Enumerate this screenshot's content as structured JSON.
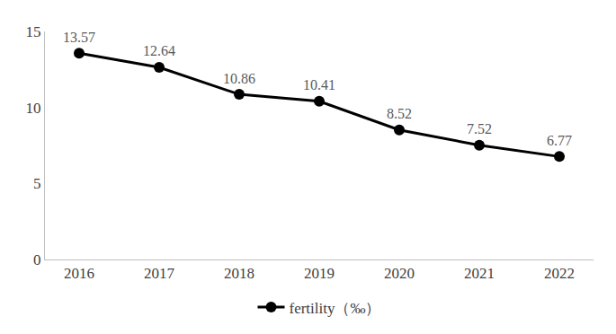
{
  "chart_data": {
    "type": "line",
    "categories": [
      "2016",
      "2017",
      "2018",
      "2019",
      "2020",
      "2021",
      "2022"
    ],
    "series": [
      {
        "name": "fertility（‰）",
        "color": "#000000",
        "marker": "circle",
        "line_style": "solid",
        "values": [
          13.57,
          12.64,
          10.86,
          10.41,
          8.52,
          7.52,
          6.77
        ]
      }
    ],
    "ylim": [
      0,
      15
    ],
    "yticks": [
      0,
      5,
      10,
      15
    ],
    "grid": false,
    "legend": "bottom",
    "data_labels": true
  }
}
